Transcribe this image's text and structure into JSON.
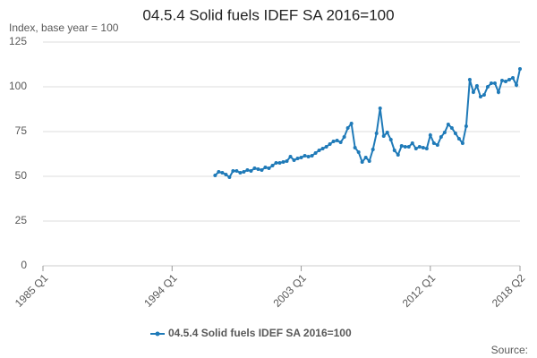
{
  "chart_data": {
    "type": "line",
    "title": "04.5.4 Solid fuels IDEF SA 2016=100",
    "y_label": "Index, base year = 100",
    "source": "Source:",
    "categories": [
      "1985 Q1",
      null,
      null,
      null,
      null,
      null,
      null,
      null,
      null,
      null,
      null,
      null,
      null,
      null,
      null,
      null,
      null,
      null,
      null,
      null,
      null,
      null,
      null,
      null,
      null,
      null,
      null,
      null,
      null,
      null,
      null,
      null,
      null,
      null,
      null,
      null,
      "1994 Q1",
      null,
      null,
      null,
      null,
      null,
      null,
      null,
      null,
      null,
      null,
      null,
      null,
      null,
      null,
      null,
      null,
      null,
      null,
      null,
      null,
      null,
      null,
      null,
      null,
      null,
      null,
      null,
      null,
      null,
      null,
      null,
      null,
      null,
      null,
      null,
      "2003 Q1",
      null,
      null,
      null,
      null,
      null,
      null,
      null,
      null,
      null,
      null,
      null,
      null,
      null,
      null,
      null,
      null,
      null,
      null,
      null,
      null,
      null,
      null,
      null,
      null,
      null,
      null,
      null,
      null,
      null,
      null,
      null,
      null,
      null,
      null,
      null,
      "2012 Q1",
      null,
      null,
      null,
      null,
      null,
      null,
      null,
      null,
      null,
      null,
      null,
      null,
      null,
      null,
      null,
      null,
      null,
      null,
      null,
      null,
      null,
      null,
      null,
      null,
      "2018 Q2"
    ],
    "series": [
      {
        "name": "04.5.4 Solid fuels IDEF SA 2016=100",
        "color": "#1f7ab8",
        "values": [
          null,
          null,
          null,
          null,
          null,
          null,
          null,
          null,
          null,
          null,
          null,
          null,
          null,
          null,
          null,
          null,
          null,
          null,
          null,
          null,
          null,
          null,
          null,
          null,
          null,
          null,
          null,
          null,
          null,
          null,
          null,
          null,
          null,
          null,
          null,
          null,
          null,
          null,
          null,
          null,
          null,
          null,
          null,
          null,
          null,
          null,
          null,
          null,
          50.5,
          52.5,
          52,
          51,
          49.5,
          53,
          53,
          52,
          52.5,
          53.5,
          53,
          54.5,
          54,
          53.5,
          55,
          54.5,
          56,
          57.5,
          57.5,
          58,
          58.5,
          61,
          59,
          60,
          60.5,
          61.5,
          61,
          61.5,
          63,
          64.5,
          65.5,
          66.5,
          68,
          69.5,
          70,
          69,
          72,
          77,
          79.5,
          66,
          63.5,
          58,
          60.5,
          58.5,
          65,
          74,
          88,
          72.5,
          74.5,
          70.5,
          64.5,
          62,
          67,
          66.5,
          66.5,
          68.5,
          65.5,
          66.5,
          66,
          65.5,
          73,
          68.5,
          67.5,
          72,
          74.5,
          79,
          77,
          74,
          71,
          68.5,
          78,
          104,
          97,
          100.5,
          94.5,
          95.5,
          100,
          102,
          102,
          97,
          103.5,
          103,
          104,
          105,
          101,
          110
        ]
      }
    ],
    "ylim": [
      0,
      125
    ],
    "yticks": [
      0,
      25,
      50,
      75,
      100,
      125
    ],
    "grid": true,
    "legend": "bottom"
  }
}
